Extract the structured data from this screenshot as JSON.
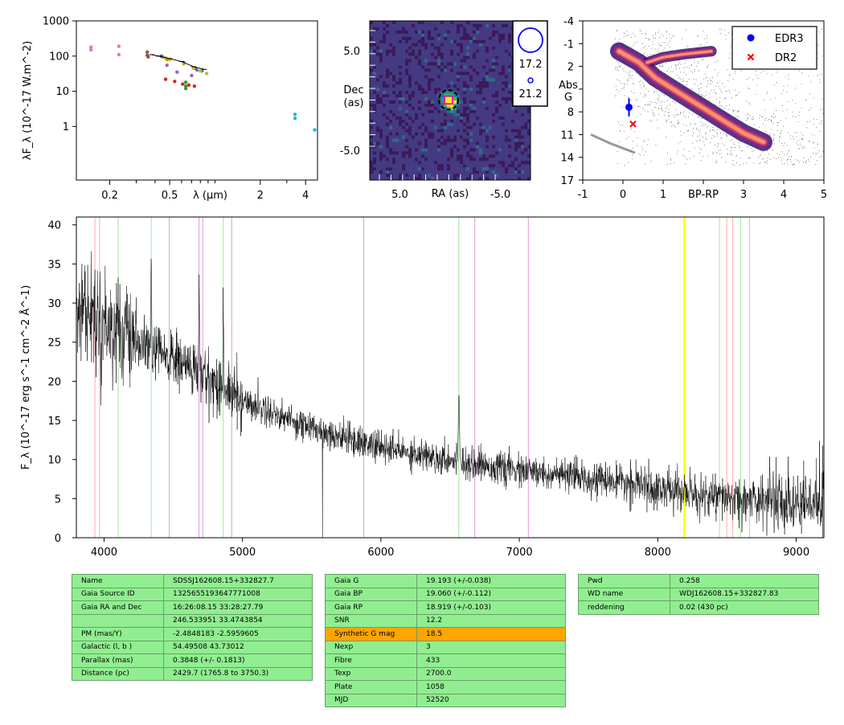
{
  "chart_data": [
    {
      "type": "scatter",
      "title": "",
      "ylabel": "λF_λ (10^-17 W.m^-2)",
      "xlabel": "λ (μm)",
      "x_scale": "log",
      "y_scale": "log",
      "xlim": [
        0.12,
        4.8
      ],
      "ylim": [
        0.03,
        1000
      ],
      "yticks": [
        "1000",
        "100",
        "10",
        "1"
      ],
      "xticks": [
        "0.2",
        "0.5",
        "λ (μm)",
        "2",
        "4"
      ],
      "series": [
        {
          "color": "#e377c2",
          "points": [
            [
              0.15,
              180
            ],
            [
              0.15,
              150
            ],
            [
              0.23,
              190
            ],
            [
              0.23,
              110
            ]
          ]
        },
        {
          "color": "#8c564b",
          "points": [
            [
              0.355,
              130
            ],
            [
              0.355,
              105
            ],
            [
              0.36,
              95
            ]
          ]
        },
        {
          "color": "#9467bd",
          "points": [
            [
              0.48,
              55
            ],
            [
              0.56,
              35
            ],
            [
              0.7,
              28
            ],
            [
              0.76,
              40
            ]
          ]
        },
        {
          "color": "#d62728",
          "points": [
            [
              0.47,
              22
            ],
            [
              0.54,
              19
            ],
            [
              0.61,
              16
            ],
            [
              0.67,
              15
            ],
            [
              0.73,
              14
            ]
          ]
        },
        {
          "color": "#2ca02c",
          "points": [
            [
              0.64,
              18
            ],
            [
              0.64,
              14
            ],
            [
              0.64,
              12
            ]
          ]
        },
        {
          "color": "#ff7f0e",
          "points": [
            [
              0.45,
              95
            ],
            [
              0.48,
              80
            ]
          ]
        },
        {
          "color": "#1f77b4",
          "points": [
            [
              0.44,
              100
            ],
            [
              0.62,
              65
            ],
            [
              0.74,
              45
            ],
            [
              0.82,
              38
            ]
          ]
        },
        {
          "color": "#bcbd22",
          "points": [
            [
              0.47,
              88
            ],
            [
              0.5,
              80
            ],
            [
              0.62,
              60
            ],
            [
              0.72,
              45
            ],
            [
              0.8,
              38
            ],
            [
              0.88,
              32
            ]
          ]
        },
        {
          "color": "#17becf",
          "points": [
            [
              3.4,
              2.2
            ],
            [
              3.4,
              1.7
            ],
            [
              4.6,
              0.8
            ]
          ]
        },
        {
          "color": "#000000",
          "points": [
            [
              0.38,
              110
            ],
            [
              0.42,
              100
            ],
            [
              0.5,
              85
            ],
            [
              0.6,
              70
            ],
            [
              0.72,
              50
            ],
            [
              0.85,
              42
            ]
          ]
        }
      ]
    },
    {
      "type": "heatmap",
      "title": "",
      "xlabel": "RA (as)",
      "ylabel": "Dec\n(as)",
      "xticks": [
        "5.0",
        "-5.0"
      ],
      "yticks": [
        "5.0",
        "-5.0"
      ],
      "xlim": [
        8,
        -8
      ],
      "ylim": [
        -8,
        8
      ],
      "legend_labels": [
        "17.2",
        "21.2"
      ]
    },
    {
      "type": "scatter",
      "title": "",
      "xlabel": "BP-RP",
      "ylabel": "Abs\nG",
      "xlim": [
        -1,
        5
      ],
      "ylim": [
        17,
        -4
      ],
      "xticks": [
        "-1",
        "0",
        "1",
        "BP-RP",
        "3",
        "4",
        "5"
      ],
      "yticks": [
        "-4",
        "-1",
        "2",
        "5",
        "8",
        "11",
        "14",
        "17"
      ],
      "legend": {
        "position": "top-right",
        "entries": [
          "EDR3",
          "DR2"
        ]
      },
      "series": [
        {
          "name": "EDR3",
          "marker": "circle",
          "color": "#0000ff",
          "x": 0.15,
          "y": 7.4,
          "yerr": 1.2
        },
        {
          "name": "DR2",
          "marker": "x",
          "color": "#ff0000",
          "x": 0.25,
          "y": 9.6
        }
      ]
    },
    {
      "type": "line",
      "title": "",
      "xlabel": "",
      "ylabel": "F_λ (10^-17 erg s^-1 cm^-2 Å^-1)",
      "xlim": [
        3800,
        9200
      ],
      "ylim": [
        0,
        41
      ],
      "xticks": [
        4000,
        5000,
        6000,
        7000,
        8000,
        9000
      ],
      "yticks": [
        0,
        5,
        10,
        15,
        20,
        25,
        30,
        35,
        40
      ],
      "vlines": [
        {
          "color": "#ffaaaa",
          "x": [
            3934,
            3968,
            8498,
            8542,
            8662
          ]
        },
        {
          "color": "#99ee99",
          "x": [
            4102,
            4341,
            4861,
            6563,
            8446,
            8598
          ]
        },
        {
          "color": "#dd99dd",
          "x": [
            4471,
            4686,
            4713,
            4922,
            5876,
            6678,
            7065
          ]
        },
        {
          "color": "#ffff00",
          "x": [
            8190,
            8195
          ]
        }
      ],
      "continuum": [
        [
          3800,
          30
        ],
        [
          4200,
          25
        ],
        [
          4600,
          22
        ],
        [
          5000,
          17.5
        ],
        [
          5500,
          14
        ],
        [
          6000,
          11.5
        ],
        [
          6500,
          10
        ],
        [
          7000,
          8.5
        ],
        [
          7500,
          7.6
        ],
        [
          8000,
          6.3
        ],
        [
          8500,
          5
        ],
        [
          9000,
          4.5
        ],
        [
          9200,
          4.2
        ]
      ],
      "emission_lines": [
        [
          4102,
          5
        ],
        [
          4341,
          10
        ],
        [
          4686,
          10
        ],
        [
          4861,
          11
        ],
        [
          6563,
          10
        ]
      ]
    }
  ],
  "tables": [
    [
      [
        "Name",
        "SDSSJ162608.15+332827.7"
      ],
      [
        "Gaia Source ID",
        "1325655193647771008"
      ],
      [
        "Gaia RA and Dec",
        "16:26:08.15    33:28:27.79"
      ],
      [
        "",
        "246.533951    33.4743854"
      ],
      [
        "PM (mas/Y)",
        "-2.4848183    -2.5959605"
      ],
      [
        "Galactic (l, b )",
        "54.49508    43.73012"
      ],
      [
        "Parallax (mas)",
        "0.3848 (+/- 0.1813)"
      ],
      [
        "Distance (pc)",
        "2429.7 (1765.8 to 3750.3)"
      ]
    ],
    [
      [
        "Gaia G",
        "19.193 (+/-0.038)"
      ],
      [
        "Gaia BP",
        "19.060 (+/-0.112)"
      ],
      [
        "Gaia RP",
        "18.919 (+/-0.103)"
      ],
      [
        "SNR",
        "12.2"
      ],
      [
        "Synthetic G mag",
        "18.5"
      ],
      [
        "Nexp",
        "3"
      ],
      [
        "Fibre",
        "433"
      ],
      [
        "Texp",
        "2700.0"
      ],
      [
        "Plate",
        "1058"
      ],
      [
        "MJD",
        "52520"
      ]
    ],
    [
      [
        "Pwd",
        "0.258"
      ],
      [
        "WD name",
        "WDJ162608.15+332827.83"
      ],
      [
        "reddening",
        "0.02 (430 pc)"
      ]
    ]
  ],
  "colors": {
    "highlight": "#ffa500",
    "cell": "#90ee90"
  }
}
